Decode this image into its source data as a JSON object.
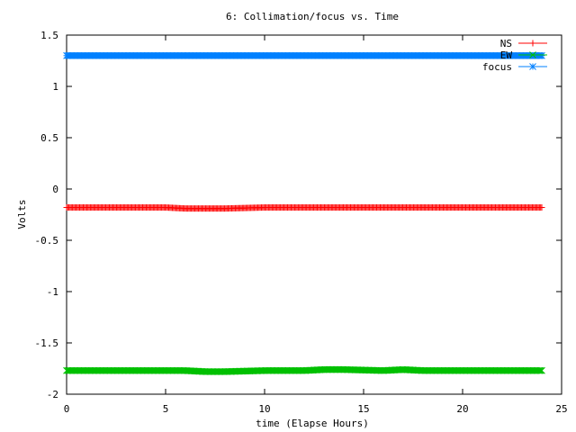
{
  "chart_data": {
    "type": "line",
    "title": "6: Collimation/focus vs. Time",
    "xlabel": "time (Elapse Hours)",
    "ylabel": "Volts",
    "xlim": [
      0,
      25
    ],
    "ylim": [
      -2,
      1.5
    ],
    "xticks": [
      0,
      5,
      10,
      15,
      20,
      25
    ],
    "yticks": [
      -2,
      -1.5,
      -1,
      -0.5,
      0,
      0.5,
      1,
      1.5
    ],
    "xtick_labels": [
      "0",
      "5",
      "10",
      "15",
      "20",
      "25"
    ],
    "ytick_labels": [
      "-2",
      "-1.5",
      "-1",
      "-0.5",
      "0",
      "0.5",
      "1",
      "1.5"
    ],
    "grid": false,
    "legend_position": "top-right",
    "x": [
      0,
      2,
      4,
      5,
      6,
      7,
      8,
      10,
      11,
      12,
      13,
      14,
      16,
      17,
      18,
      20,
      22,
      24
    ],
    "series": [
      {
        "name": "NS",
        "color": "#ff0000",
        "marker": "plus",
        "values": [
          -0.18,
          -0.18,
          -0.18,
          -0.18,
          -0.19,
          -0.19,
          -0.19,
          -0.18,
          -0.18,
          -0.18,
          -0.18,
          -0.18,
          -0.18,
          -0.18,
          -0.18,
          -0.18,
          -0.18,
          -0.18
        ]
      },
      {
        "name": "EW",
        "color": "#00c000",
        "marker": "x",
        "values": [
          -1.77,
          -1.77,
          -1.77,
          -1.77,
          -1.77,
          -1.78,
          -1.78,
          -1.77,
          -1.77,
          -1.77,
          -1.76,
          -1.76,
          -1.77,
          -1.76,
          -1.77,
          -1.77,
          -1.77,
          -1.77
        ]
      },
      {
        "name": "focus",
        "color": "#0080ff",
        "marker": "star",
        "values": [
          1.3,
          1.3,
          1.3,
          1.3,
          1.3,
          1.3,
          1.3,
          1.3,
          1.3,
          1.3,
          1.3,
          1.3,
          1.3,
          1.3,
          1.3,
          1.3,
          1.3,
          1.3
        ]
      }
    ]
  }
}
